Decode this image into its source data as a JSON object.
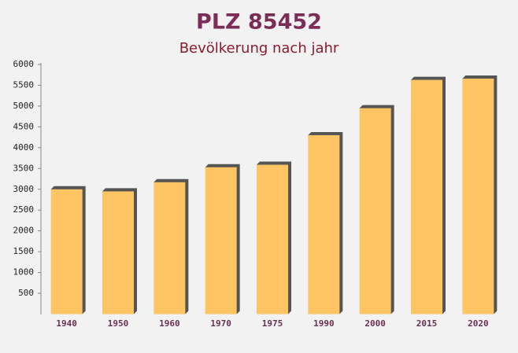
{
  "chart_data": {
    "type": "bar",
    "title": "PLZ 85452",
    "subtitle": "Bevölkerung nach jahr",
    "categories": [
      "1940",
      "1950",
      "1960",
      "1970",
      "1975",
      "1990",
      "2000",
      "2015",
      "2020"
    ],
    "values": [
      3000,
      2950,
      3170,
      3530,
      3590,
      4300,
      4950,
      5630,
      5660
    ],
    "color": "#fcc462",
    "ylim": [
      0,
      6000
    ],
    "yticks": [
      500,
      1000,
      1500,
      2000,
      2500,
      3000,
      3500,
      4000,
      4500,
      5000,
      5500,
      6000
    ],
    "grid": false
  }
}
